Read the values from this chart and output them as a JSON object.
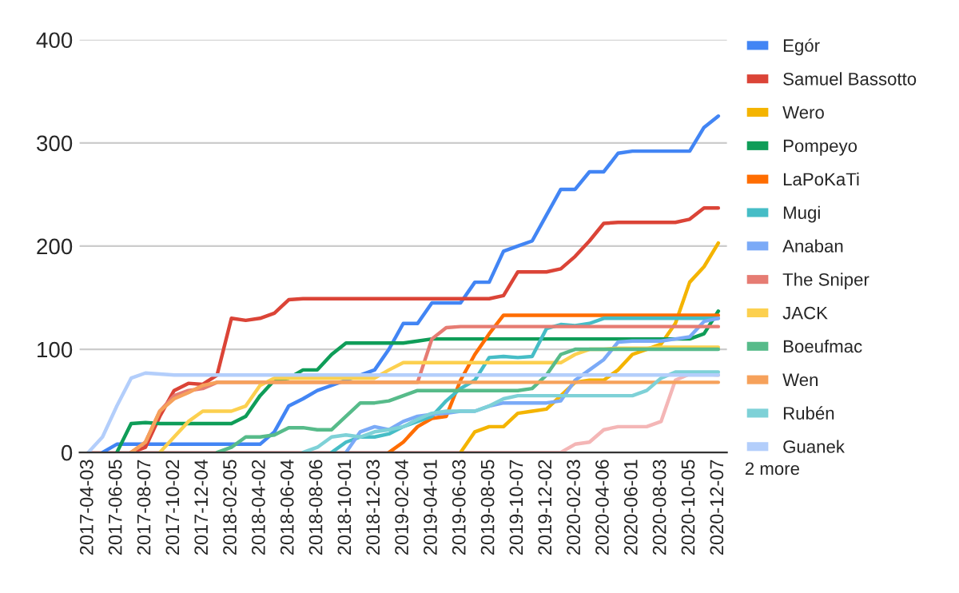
{
  "chart_data": {
    "type": "line",
    "categories": [
      "2017-04-03",
      null,
      "2017-06-05",
      null,
      "2017-08-07",
      null,
      "2017-10-02",
      null,
      "2017-12-04",
      null,
      "2018-02-05",
      null,
      "2018-04-02",
      null,
      "2018-06-04",
      null,
      "2018-08-06",
      null,
      "2018-10-01",
      null,
      "2018-12-03",
      null,
      "2019-02-04",
      null,
      "2019-04-01",
      null,
      "2019-06-03",
      null,
      "2019-08-05",
      null,
      "2019-10-07",
      null,
      "2019-12-02",
      null,
      "2020-02-03",
      null,
      "2020-04-06",
      null,
      "2020-06-01",
      null,
      "2020-08-03",
      null,
      "2020-10-05",
      null,
      "2020-12-07"
    ],
    "ylim": [
      0,
      400
    ],
    "yticks": [
      0,
      100,
      200,
      300,
      400
    ],
    "grid": "y",
    "legend": "right",
    "marker": "none",
    "line_style": "solid",
    "annotations": [
      "2 more"
    ],
    "series": [
      {
        "name": "Egór",
        "color": "#4285f4",
        "values": [
          null,
          0,
          8,
          8,
          8,
          8,
          8,
          8,
          8,
          8,
          8,
          8,
          8,
          20,
          45,
          52,
          60,
          65,
          70,
          75,
          80,
          100,
          125,
          125,
          145,
          145,
          145,
          165,
          165,
          195,
          200,
          205,
          230,
          255,
          255,
          272,
          272,
          290,
          292,
          292,
          292,
          292,
          292,
          315,
          326
        ]
      },
      {
        "name": "Samuel Bassotto",
        "color": "#db4437",
        "values": [
          null,
          null,
          null,
          0,
          5,
          35,
          60,
          67,
          66,
          75,
          130,
          128,
          130,
          135,
          148,
          149,
          149,
          149,
          149,
          149,
          149,
          149,
          149,
          149,
          149,
          149,
          149,
          149,
          149,
          152,
          175,
          175,
          175,
          178,
          190,
          205,
          222,
          223,
          223,
          223,
          223,
          223,
          226,
          237,
          237
        ]
      },
      {
        "name": "Wero",
        "color": "#f4b400",
        "values": [
          null,
          null,
          null,
          null,
          null,
          null,
          null,
          null,
          null,
          null,
          null,
          null,
          null,
          null,
          null,
          null,
          null,
          null,
          null,
          null,
          null,
          null,
          null,
          null,
          null,
          null,
          0,
          20,
          25,
          25,
          38,
          40,
          42,
          55,
          68,
          70,
          70,
          80,
          95,
          100,
          105,
          125,
          165,
          180,
          203
        ]
      },
      {
        "name": "Pompeyo",
        "color": "#0f9d58",
        "values": [
          null,
          null,
          0,
          28,
          29,
          28,
          28,
          28,
          28,
          28,
          28,
          35,
          55,
          70,
          72,
          80,
          80,
          95,
          106,
          106,
          106,
          106,
          106,
          108,
          110,
          110,
          110,
          110,
          110,
          110,
          110,
          110,
          110,
          110,
          110,
          110,
          110,
          110,
          110,
          110,
          110,
          110,
          110,
          115,
          137
        ]
      },
      {
        "name": "LaPoKaTi",
        "color": "#ff6d01",
        "values": [
          null,
          null,
          null,
          null,
          null,
          null,
          null,
          null,
          null,
          null,
          null,
          null,
          null,
          null,
          null,
          null,
          null,
          null,
          null,
          null,
          null,
          0,
          10,
          25,
          33,
          35,
          70,
          95,
          115,
          133,
          133,
          133,
          133,
          133,
          133,
          133,
          133,
          133,
          133,
          133,
          133,
          133,
          133,
          133,
          133
        ]
      },
      {
        "name": "Mugi",
        "color": "#46bdc6",
        "values": [
          null,
          null,
          null,
          null,
          null,
          null,
          null,
          null,
          null,
          null,
          null,
          null,
          null,
          null,
          null,
          null,
          null,
          0,
          10,
          15,
          15,
          18,
          25,
          30,
          35,
          50,
          62,
          70,
          92,
          93,
          92,
          93,
          120,
          124,
          123,
          125,
          130,
          130,
          130,
          130,
          130,
          130,
          130,
          130,
          130
        ]
      },
      {
        "name": "Anaban",
        "color": "#7baaf7",
        "values": [
          null,
          null,
          null,
          null,
          null,
          null,
          null,
          null,
          null,
          null,
          null,
          null,
          null,
          null,
          null,
          null,
          null,
          null,
          0,
          20,
          25,
          22,
          30,
          35,
          37,
          38,
          40,
          40,
          45,
          48,
          48,
          48,
          48,
          50,
          70,
          80,
          90,
          107,
          108,
          108,
          108,
          110,
          112,
          127,
          130
        ]
      },
      {
        "name": "The Sniper",
        "color": "#e67c73",
        "values": [
          null,
          null,
          null,
          0,
          10,
          40,
          55,
          60,
          62,
          68,
          68,
          68,
          68,
          68,
          68,
          68,
          68,
          68,
          68,
          68,
          68,
          68,
          68,
          68,
          110,
          121,
          122,
          122,
          122,
          122,
          122,
          122,
          122,
          122,
          122,
          122,
          122,
          122,
          122,
          122,
          122,
          122,
          122,
          122,
          122
        ]
      },
      {
        "name": "JACK",
        "color": "#fcd04f",
        "values": [
          null,
          null,
          null,
          null,
          null,
          0,
          15,
          30,
          40,
          40,
          40,
          45,
          65,
          72,
          72,
          72,
          72,
          72,
          72,
          72,
          72,
          80,
          87,
          87,
          87,
          87,
          87,
          87,
          87,
          87,
          87,
          87,
          87,
          87,
          95,
          100,
          100,
          101,
          101,
          101,
          102,
          102,
          102,
          102,
          102
        ]
      },
      {
        "name": "Boeufmac",
        "color": "#57bb8a",
        "values": [
          null,
          null,
          null,
          null,
          null,
          null,
          null,
          null,
          null,
          0,
          5,
          15,
          15,
          17,
          24,
          24,
          22,
          22,
          35,
          48,
          48,
          50,
          55,
          60,
          60,
          60,
          60,
          60,
          60,
          60,
          60,
          62,
          75,
          95,
          100,
          100,
          100,
          100,
          100,
          100,
          100,
          100,
          100,
          100,
          100
        ]
      },
      {
        "name": "Wen",
        "color": "#f6a15b",
        "values": [
          null,
          null,
          null,
          0,
          10,
          40,
          52,
          58,
          65,
          68,
          68,
          68,
          68,
          68,
          68,
          68,
          68,
          68,
          68,
          68,
          68,
          68,
          68,
          68,
          68,
          68,
          68,
          68,
          68,
          68,
          68,
          68,
          68,
          68,
          68,
          68,
          68,
          68,
          68,
          68,
          68,
          68,
          68,
          68,
          68
        ]
      },
      {
        "name": "Rubén",
        "color": "#7ed1d7",
        "values": [
          null,
          null,
          null,
          null,
          null,
          null,
          null,
          null,
          null,
          null,
          null,
          null,
          null,
          null,
          null,
          0,
          5,
          15,
          17,
          15,
          20,
          22,
          25,
          32,
          38,
          40,
          40,
          40,
          45,
          52,
          55,
          55,
          55,
          55,
          55,
          55,
          55,
          55,
          55,
          60,
          72,
          78,
          78,
          78,
          78
        ]
      },
      {
        "name": "Guanek",
        "color": "#b3cefb",
        "values": [
          0,
          15,
          45,
          72,
          77,
          76,
          75,
          75,
          75,
          75,
          75,
          75,
          75,
          75,
          75,
          75,
          75,
          75,
          75,
          75,
          75,
          75,
          75,
          75,
          75,
          75,
          75,
          75,
          75,
          75,
          75,
          75,
          75,
          75,
          75,
          75,
          75,
          75,
          75,
          75,
          75,
          75,
          75,
          75,
          75
        ]
      },
      {
        "color": "#f4b6b6",
        "values": [
          0,
          0,
          0,
          0,
          0,
          0,
          0,
          0,
          0,
          0,
          0,
          0,
          0,
          0,
          0,
          0,
          0,
          0,
          0,
          0,
          0,
          0,
          0,
          0,
          0,
          0,
          0,
          0,
          0,
          0,
          0,
          0,
          0,
          0,
          8,
          10,
          22,
          25,
          25,
          25,
          30,
          70,
          76,
          76,
          75
        ]
      }
    ]
  }
}
